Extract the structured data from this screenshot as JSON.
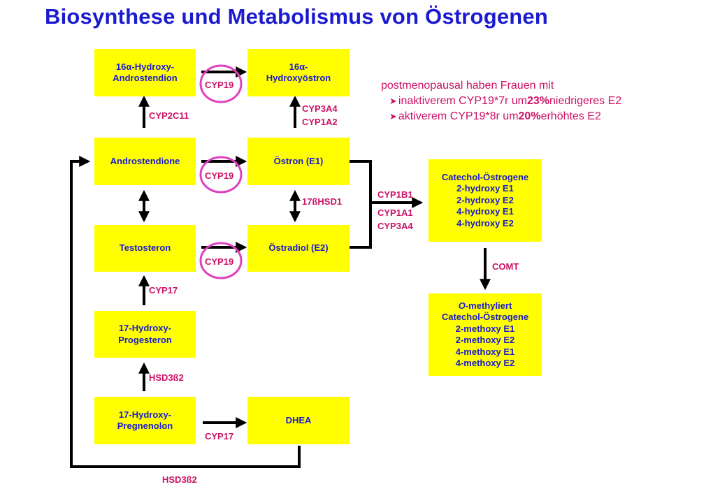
{
  "title": "Biosynthese und Metabolismus von Östrogenen",
  "boxes": {
    "hydroxy_androstendion": [
      "16α-Hydroxy-",
      "Androstendion"
    ],
    "hydroxyoestron": [
      "16α-",
      "Hydroxyöstron"
    ],
    "androstendione": "Androstendione",
    "oestron": "Östron (E1)",
    "testosteron": "Testosteron",
    "oestradiol": "Östradiol (E2)",
    "hydroxy_progesteron": [
      "17-Hydroxy-",
      "Progesteron"
    ],
    "hydroxy_pregnenolon": [
      "17-Hydroxy-",
      "Pregnenolon"
    ],
    "dhea": "DHEA",
    "catechol": [
      "Catechol-Östrogene",
      "2-hydroxy E1",
      "2-hydroxy E2",
      "4-hydroxy E1",
      "4-hydroxy E2"
    ],
    "methyl": {
      "prefix": "O",
      "suffix": "-methyliert",
      "lines": [
        "Catechol-Östrogene",
        "2-methoxy E1",
        "2-methoxy E2",
        "4-methoxy E1",
        "4-methoxy E2"
      ]
    }
  },
  "enzymes": {
    "cyp19_top": "CYP19",
    "cyp19_mid": "CYP19",
    "cyp19_low": "CYP19",
    "cyp2c11": "CYP2C11",
    "cyp3a4_cyp1a2": [
      "CYP3A4",
      "CYP1A2"
    ],
    "hsd17b1": "17ßHSD1",
    "cyp1b1": "CYP1B1",
    "cyp1a1_cyp3a4": [
      "CYP1A1",
      "CYP3A4"
    ],
    "comt": "COMT",
    "cyp17_left": "CYP17",
    "hsd3b2_left": "HSD3ß2",
    "cyp17_bottom": "CYP17",
    "hsd3b2_bottom": "HSD3ß2"
  },
  "note": {
    "heading": "postmenopausal haben Frauen mit",
    "bullets": [
      {
        "a": "inaktiverem CYP19*7r um ",
        "value": "23%",
        "b": " niedrigeres E2"
      },
      {
        "a": "aktiverem CYP19*8r um ",
        "value": "20%",
        "b": " erhöhtes E2"
      }
    ],
    "bullet_icon": "arrow-bullet-icon"
  },
  "colors": {
    "box": "#ffff00",
    "box_text": "#1a1ad0",
    "enzyme_text": "#cc1166",
    "ellipse": "#e040c0",
    "line": "#000000"
  }
}
